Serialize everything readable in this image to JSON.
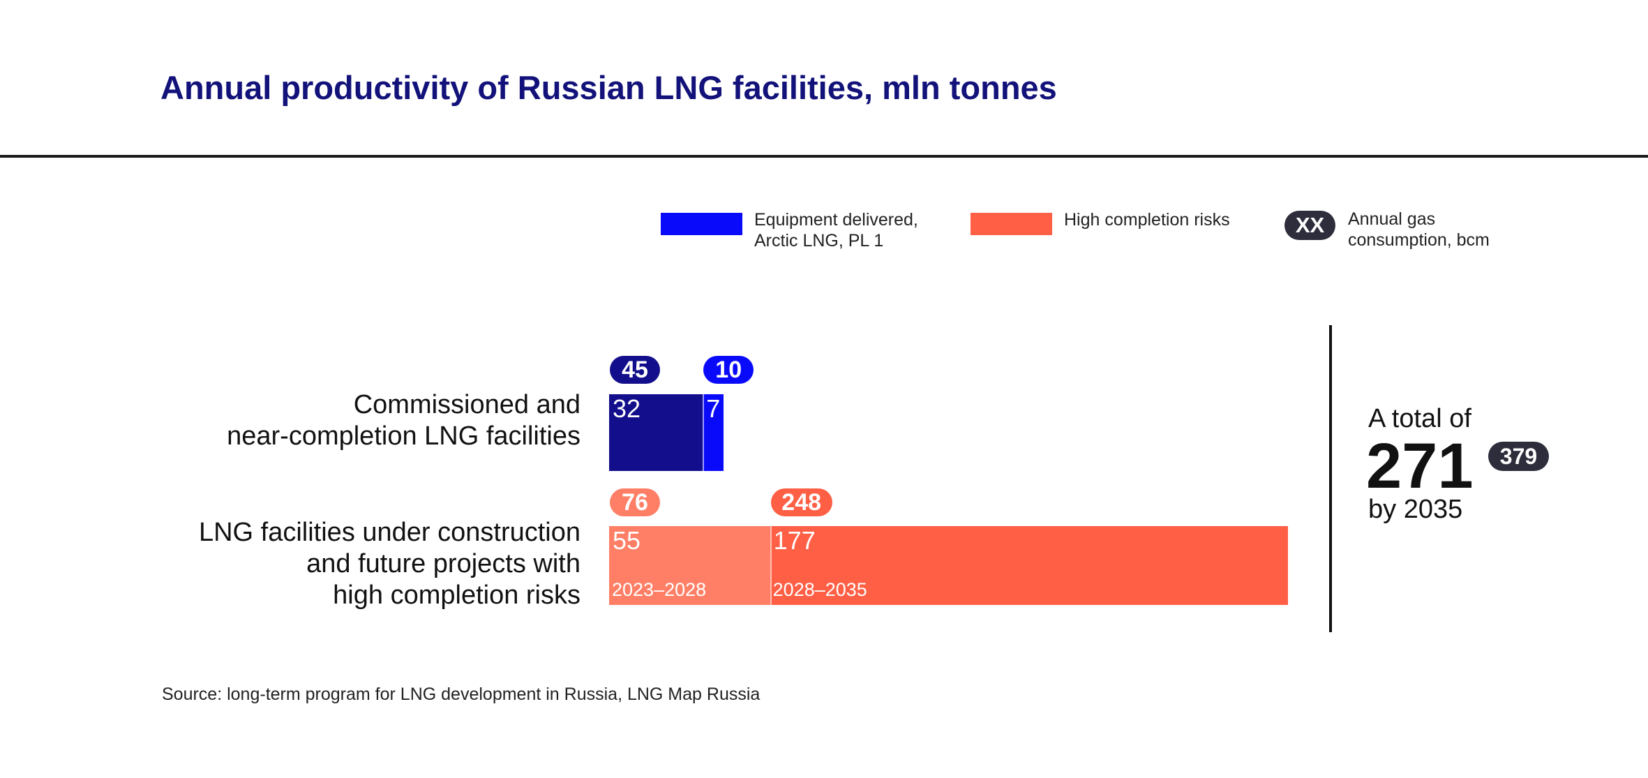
{
  "title": "Annual productivity of Russian LNG facilities, mln tonnes",
  "legend": {
    "items": [
      {
        "label_line1": "Equipment delivered,",
        "label_line2": "Arctic LNG, PL 1",
        "color": "#0a0afa"
      },
      {
        "label_line1": "High completion risks",
        "color": "#ff5f45"
      },
      {
        "pill_text": "XX",
        "label_line1": "Annual gas",
        "label_line2": "consumption, bcm",
        "color": "#2d2d3c"
      }
    ]
  },
  "chart_data": {
    "type": "bar",
    "orientation": "horizontal",
    "stacked": true,
    "title": "Annual productivity of Russian LNG facilities, mln tonnes",
    "unit": "mln tonnes",
    "categories": [
      {
        "line1": "Commissioned and",
        "line2": "near-completion LNG facilities"
      },
      {
        "line1": "LNG facilities under construction",
        "line2": "and future projects with",
        "line3": "high completion risks"
      }
    ],
    "rows": [
      {
        "segments": [
          {
            "value": 32,
            "label": "32",
            "gas": 45,
            "gas_label": "45",
            "color": "#130f8c",
            "pill_color": "#130f8c"
          },
          {
            "value": 7,
            "label": "7",
            "gas": 10,
            "gas_label": "10",
            "color": "#0a0afa",
            "pill_color": "#0a0afa"
          }
        ]
      },
      {
        "segments": [
          {
            "value": 55,
            "label": "55",
            "period": "2023–2028",
            "gas": 76,
            "gas_label": "76",
            "color": "#ff7f66",
            "pill_color": "#ff7f66"
          },
          {
            "value": 177,
            "label": "177",
            "period": "2028–2035",
            "gas": 248,
            "gas_label": "248",
            "color": "#ff5f45",
            "pill_color": "#ff5f45"
          }
        ]
      }
    ],
    "xlim": [
      0,
      232
    ],
    "total": {
      "prefix": "A total of",
      "value": "271",
      "suffix": "by 2035",
      "gas": "379"
    }
  },
  "source": "Source: long-term program for LNG development in Russia, LNG Map Russia"
}
